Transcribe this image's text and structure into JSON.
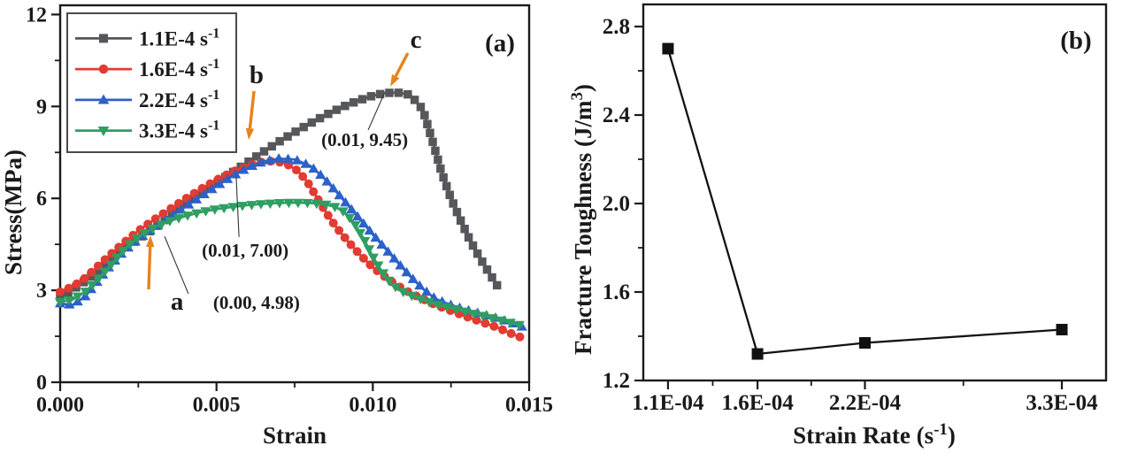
{
  "figure": {
    "background": "#ffffff",
    "axis_color": "#1a1a1a",
    "annotation_color": "#e8821c"
  },
  "chart_data": [
    {
      "id": "a",
      "type": "line",
      "panel_label": "(a)",
      "xlabel_parts": [
        {
          "t": "Strain"
        }
      ],
      "ylabel_parts": [
        {
          "t": "Stress(MPa)"
        }
      ],
      "xlim": [
        0,
        0.015
      ],
      "ylim": [
        0,
        12.3
      ],
      "x_ticks": {
        "major": [
          0,
          0.005,
          0.01,
          0.015
        ],
        "labels": [
          "0.000",
          "0.005",
          "0.010",
          "0.015"
        ],
        "minor": [
          0.0025,
          0.0075,
          0.0125
        ]
      },
      "y_ticks": {
        "major": [
          0,
          3,
          6,
          9,
          12
        ],
        "labels": [
          "0",
          "3",
          "6",
          "9",
          "12"
        ],
        "minor": [
          1.5,
          4.5,
          7.5,
          10.5
        ]
      },
      "legend": {
        "show": true
      },
      "series": [
        {
          "name": "1.1E-4 s-1",
          "label_parts": [
            {
              "t": "1.1E-4 s"
            },
            {
              "t": "-1",
              "sup": true
            }
          ],
          "color": "#56575a",
          "marker": "square",
          "marker_size": 9.5,
          "points": [
            [
              0,
              2.78
            ],
            [
              0.0004,
              3.02
            ],
            [
              0.0008,
              3.3
            ],
            [
              0.0012,
              3.62
            ],
            [
              0.0016,
              3.96
            ],
            [
              0.002,
              4.3
            ],
            [
              0.0025,
              4.68
            ],
            [
              0.003,
              5.02
            ],
            [
              0.0035,
              5.42
            ],
            [
              0.004,
              5.8
            ],
            [
              0.0045,
              6.16
            ],
            [
              0.005,
              6.5
            ],
            [
              0.0055,
              6.84
            ],
            [
              0.006,
              7.18
            ],
            [
              0.0065,
              7.52
            ],
            [
              0.007,
              7.85
            ],
            [
              0.0075,
              8.16
            ],
            [
              0.008,
              8.45
            ],
            [
              0.0085,
              8.72
            ],
            [
              0.009,
              8.97
            ],
            [
              0.0095,
              9.18
            ],
            [
              0.01,
              9.35
            ],
            [
              0.0104,
              9.44
            ],
            [
              0.0108,
              9.45
            ],
            [
              0.0112,
              9.38
            ],
            [
              0.0116,
              8.9
            ],
            [
              0.0119,
              7.9
            ],
            [
              0.0122,
              6.85
            ],
            [
              0.0125,
              6.0
            ],
            [
              0.0128,
              5.3
            ],
            [
              0.0131,
              4.65
            ],
            [
              0.0134,
              4.1
            ],
            [
              0.0137,
              3.6
            ],
            [
              0.014,
              3.12
            ]
          ]
        },
        {
          "name": "1.6E-4 s-1",
          "label_parts": [
            {
              "t": "1.6E-4 s"
            },
            {
              "t": "-1",
              "sup": true
            }
          ],
          "color": "#e23b32",
          "marker": "circle",
          "marker_size": 10,
          "points": [
            [
              0,
              2.95
            ],
            [
              0.0004,
              3.12
            ],
            [
              0.0008,
              3.4
            ],
            [
              0.0012,
              3.78
            ],
            [
              0.0016,
              4.16
            ],
            [
              0.002,
              4.52
            ],
            [
              0.0025,
              4.94
            ],
            [
              0.003,
              5.3
            ],
            [
              0.0035,
              5.64
            ],
            [
              0.004,
              5.98
            ],
            [
              0.0045,
              6.3
            ],
            [
              0.005,
              6.6
            ],
            [
              0.0055,
              6.86
            ],
            [
              0.006,
              7.06
            ],
            [
              0.0064,
              7.18
            ],
            [
              0.0068,
              7.22
            ],
            [
              0.0072,
              7.15
            ],
            [
              0.0076,
              6.9
            ],
            [
              0.0079,
              6.55
            ],
            [
              0.0082,
              6.05
            ],
            [
              0.0085,
              5.55
            ],
            [
              0.0088,
              5.1
            ],
            [
              0.0092,
              4.6
            ],
            [
              0.0096,
              4.15
            ],
            [
              0.01,
              3.75
            ],
            [
              0.0105,
              3.35
            ],
            [
              0.011,
              3.02
            ],
            [
              0.0115,
              2.76
            ],
            [
              0.012,
              2.53
            ],
            [
              0.0125,
              2.33
            ],
            [
              0.013,
              2.14
            ],
            [
              0.0135,
              1.96
            ],
            [
              0.014,
              1.78
            ],
            [
              0.0144,
              1.6
            ],
            [
              0.0148,
              1.44
            ]
          ]
        },
        {
          "name": "2.2E-4 s-1",
          "label_parts": [
            {
              "t": "2.2E-4 s"
            },
            {
              "t": "-1",
              "sup": true
            }
          ],
          "color": "#2b61c9",
          "marker": "triangle-up",
          "marker_size": 11,
          "points": [
            [
              0,
              2.57
            ],
            [
              0.0004,
              2.52
            ],
            [
              0.0008,
              2.8
            ],
            [
              0.0012,
              3.3
            ],
            [
              0.0016,
              3.8
            ],
            [
              0.002,
              4.24
            ],
            [
              0.0025,
              4.68
            ],
            [
              0.003,
              5.04
            ],
            [
              0.0035,
              5.38
            ],
            [
              0.004,
              5.72
            ],
            [
              0.0045,
              6.06
            ],
            [
              0.005,
              6.4
            ],
            [
              0.0055,
              6.72
            ],
            [
              0.006,
              7.0
            ],
            [
              0.0065,
              7.2
            ],
            [
              0.007,
              7.3
            ],
            [
              0.0075,
              7.27
            ],
            [
              0.008,
              7.06
            ],
            [
              0.0084,
              6.7
            ],
            [
              0.0088,
              6.25
            ],
            [
              0.0092,
              5.78
            ],
            [
              0.0096,
              5.3
            ],
            [
              0.01,
              4.82
            ],
            [
              0.0104,
              4.36
            ],
            [
              0.0108,
              3.9
            ],
            [
              0.0112,
              3.45
            ],
            [
              0.0116,
              3.05
            ],
            [
              0.012,
              2.72
            ],
            [
              0.0125,
              2.52
            ],
            [
              0.013,
              2.36
            ],
            [
              0.0135,
              2.22
            ],
            [
              0.014,
              2.08
            ],
            [
              0.0144,
              1.95
            ],
            [
              0.0148,
              1.8
            ]
          ]
        },
        {
          "name": "3.3E-4 s-1",
          "label_parts": [
            {
              "t": "3.3E-4 s"
            },
            {
              "t": "-1",
              "sup": true
            }
          ],
          "color": "#2f9e62",
          "marker": "triangle-down",
          "marker_size": 11,
          "points": [
            [
              0,
              2.62
            ],
            [
              0.0004,
              2.7
            ],
            [
              0.0008,
              2.95
            ],
            [
              0.0012,
              3.35
            ],
            [
              0.0016,
              3.8
            ],
            [
              0.002,
              4.28
            ],
            [
              0.0025,
              4.74
            ],
            [
              0.003,
              5.04
            ],
            [
              0.0035,
              5.26
            ],
            [
              0.004,
              5.42
            ],
            [
              0.0045,
              5.55
            ],
            [
              0.005,
              5.65
            ],
            [
              0.0055,
              5.72
            ],
            [
              0.006,
              5.78
            ],
            [
              0.0065,
              5.82
            ],
            [
              0.007,
              5.85
            ],
            [
              0.0075,
              5.86
            ],
            [
              0.008,
              5.85
            ],
            [
              0.0085,
              5.8
            ],
            [
              0.0088,
              5.72
            ],
            [
              0.0091,
              5.55
            ],
            [
              0.0094,
              5.2
            ],
            [
              0.0097,
              4.7
            ],
            [
              0.01,
              4.1
            ],
            [
              0.0103,
              3.6
            ],
            [
              0.0106,
              3.2
            ],
            [
              0.0109,
              2.98
            ],
            [
              0.0113,
              2.8
            ],
            [
              0.0117,
              2.65
            ],
            [
              0.0121,
              2.52
            ],
            [
              0.0126,
              2.4
            ],
            [
              0.0131,
              2.27
            ],
            [
              0.0136,
              2.15
            ],
            [
              0.0141,
              2.02
            ],
            [
              0.0145,
              1.92
            ],
            [
              0.0148,
              1.84
            ]
          ]
        }
      ],
      "annotations": {
        "letters": [
          {
            "text": "a",
            "x": 0.00374,
            "y": 2.63
          },
          {
            "text": "b",
            "x": 0.00628,
            "y": 10.02
          },
          {
            "text": "c",
            "x": 0.01138,
            "y": 11.18
          }
        ],
        "arrows": [
          {
            "from": [
              0.00283,
              3.03
            ],
            "to": [
              0.00289,
              4.79
            ]
          },
          {
            "from": [
              0.0062,
              9.5
            ],
            "to": [
              0.00603,
              7.91
            ]
          },
          {
            "from": [
              0.01112,
              10.74
            ],
            "to": [
              0.01056,
              9.65
            ]
          }
        ],
        "leaders": [
          {
            "from": [
              0.0041,
              2.89
            ],
            "to": [
              0.00334,
              4.76
            ]
          },
          {
            "from": [
              0.00572,
              4.74
            ],
            "to": [
              0.00563,
              6.7
            ]
          },
          {
            "from": [
              0.00985,
              8.23
            ],
            "to": [
              0.01036,
              9.41
            ]
          }
        ],
        "coord_labels": [
          {
            "text": "(0.00, 4.98)",
            "x": 0.00628,
            "y": 2.6
          },
          {
            "text": "(0.01, 7.00)",
            "x": 0.00592,
            "y": 4.3
          },
          {
            "text": "(0.01, 9.45)",
            "x": 0.00974,
            "y": 7.91
          }
        ]
      }
    },
    {
      "id": "b",
      "type": "line",
      "panel_label": "(b)",
      "xlabel_parts": [
        {
          "t": "Strain Rate ("
        },
        {
          "t": "s"
        },
        {
          "t": "-1",
          "sup": true
        },
        {
          "t": ")"
        }
      ],
      "ylabel_parts": [
        {
          "t": "Fracture Toughness (J/m"
        },
        {
          "t": "3",
          "sup": true
        },
        {
          "t": ")"
        }
      ],
      "categories": [
        "1.1E-04",
        "1.6E-04",
        "2.2E-04",
        "3.3E-04"
      ],
      "values": [
        2.7,
        1.32,
        1.37,
        1.43
      ],
      "xlim": [
        0.962,
        3.547
      ],
      "ylim": [
        1.2,
        2.9
      ],
      "x_ticks": {
        "major": [
          1.1,
          1.6,
          2.2,
          3.3
        ],
        "labels": [
          "1.1E-04",
          "1.6E-04",
          "2.2E-04",
          "3.3E-04"
        ],
        "minor": [
          1.35,
          1.9,
          2.75
        ]
      },
      "y_ticks": {
        "major": [
          1.2,
          1.6,
          2.0,
          2.4,
          2.8
        ],
        "labels": [
          "1.2",
          "1.6",
          "2.0",
          "2.4",
          "2.8"
        ],
        "minor": [
          1.4,
          1.8,
          2.2,
          2.6
        ]
      },
      "legend": {
        "show": false
      },
      "series": [
        {
          "name": "fracture-toughness",
          "label_parts": [],
          "color": "#111111",
          "marker": "square",
          "marker_size": 13,
          "points": [
            [
              1.1,
              2.7
            ],
            [
              1.6,
              1.32
            ],
            [
              2.2,
              1.37
            ],
            [
              3.3,
              1.43
            ]
          ]
        }
      ],
      "annotations": {
        "letters": [],
        "arrows": [],
        "leaders": [],
        "coord_labels": []
      }
    }
  ]
}
